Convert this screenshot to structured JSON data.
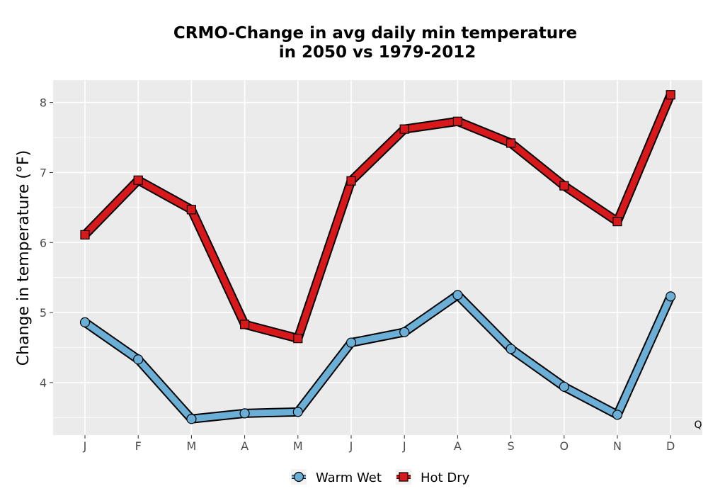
{
  "chart_data": {
    "type": "line",
    "title_line1": "CRMO-Change in avg daily min temperature",
    "title_line2": "in 2050 vs 1979-2012",
    "xlabel": "",
    "ylabel": "Change in temperature (°F)",
    "categories": [
      "J",
      "F",
      "M",
      "A",
      "M",
      "J",
      "J",
      "A",
      "S",
      "O",
      "N",
      "D"
    ],
    "ylim": [
      3.25,
      8.32
    ],
    "yticks": [
      4,
      5,
      6,
      7,
      8
    ],
    "grid": true,
    "legend_position": "bottom",
    "corner_label": "Q",
    "series": [
      {
        "name": "Warm Wet",
        "marker": "circle",
        "color": "#6baed6",
        "values": [
          4.86,
          4.33,
          3.48,
          3.56,
          3.58,
          4.57,
          4.72,
          5.25,
          4.48,
          3.94,
          3.54,
          5.23
        ]
      },
      {
        "name": "Hot Dry",
        "marker": "square",
        "color": "#d7191c",
        "values": [
          6.11,
          6.89,
          6.47,
          4.83,
          4.63,
          6.88,
          7.62,
          7.73,
          7.42,
          6.81,
          6.3,
          8.11
        ]
      }
    ]
  },
  "colors": {
    "panel": "#ebebeb",
    "grid": "#ffffff",
    "outline": "#000000"
  }
}
